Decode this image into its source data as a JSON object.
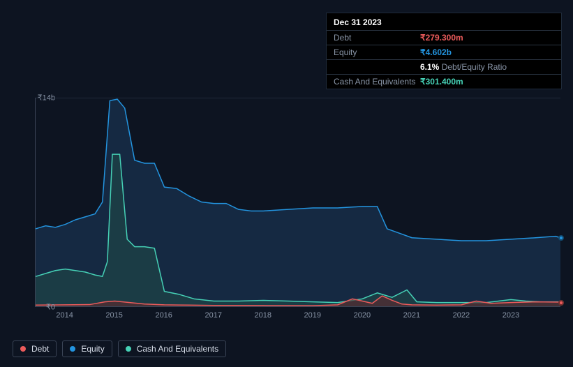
{
  "tooltip": {
    "date": "Dec 31 2023",
    "rows": [
      {
        "label": "Debt",
        "value": "₹279.300m",
        "cls": "v-debt"
      },
      {
        "label": "Equity",
        "value": "₹4.602b",
        "cls": "v-equity"
      },
      {
        "label": "",
        "value": "6.1%",
        "suffix": "Debt/Equity Ratio",
        "cls": "v-ratio"
      },
      {
        "label": "Cash And Equivalents",
        "value": "₹301.400m",
        "cls": "v-cash"
      }
    ]
  },
  "chart": {
    "type": "area",
    "background_color": "#0d1421",
    "grid_color": "#202a3a",
    "axis_color": "#3a4456",
    "tick_color": "#8a96a8",
    "tick_fontsize": 11,
    "y": {
      "min": 0,
      "max": 14,
      "ticks": [
        {
          "v": 0,
          "label": "₹0"
        },
        {
          "v": 14,
          "label": "₹14b"
        }
      ]
    },
    "x": {
      "min": 2013.4,
      "max": 2024.0,
      "ticks": [
        2014,
        2015,
        2016,
        2017,
        2018,
        2019,
        2020,
        2021,
        2022,
        2023
      ]
    },
    "series": [
      {
        "key": "equity",
        "label": "Equity",
        "color": "#2394df",
        "fill_color": "#1e3a5f",
        "fill_opacity": 0.55,
        "line_width": 1.5,
        "draw_order": 1,
        "points": [
          [
            2013.4,
            5.2
          ],
          [
            2013.6,
            5.4
          ],
          [
            2013.8,
            5.3
          ],
          [
            2014.0,
            5.5
          ],
          [
            2014.2,
            5.8
          ],
          [
            2014.4,
            6.0
          ],
          [
            2014.6,
            6.2
          ],
          [
            2014.75,
            7.0
          ],
          [
            2014.9,
            13.8
          ],
          [
            2015.05,
            13.9
          ],
          [
            2015.2,
            13.3
          ],
          [
            2015.4,
            9.8
          ],
          [
            2015.6,
            9.6
          ],
          [
            2015.8,
            9.6
          ],
          [
            2016.0,
            8.0
          ],
          [
            2016.25,
            7.9
          ],
          [
            2016.5,
            7.4
          ],
          [
            2016.75,
            7.0
          ],
          [
            2017.0,
            6.9
          ],
          [
            2017.25,
            6.9
          ],
          [
            2017.5,
            6.5
          ],
          [
            2017.75,
            6.4
          ],
          [
            2018.0,
            6.4
          ],
          [
            2018.5,
            6.5
          ],
          [
            2019.0,
            6.6
          ],
          [
            2019.5,
            6.6
          ],
          [
            2020.0,
            6.7
          ],
          [
            2020.3,
            6.7
          ],
          [
            2020.5,
            5.2
          ],
          [
            2020.75,
            4.9
          ],
          [
            2021.0,
            4.6
          ],
          [
            2021.5,
            4.5
          ],
          [
            2022.0,
            4.4
          ],
          [
            2022.5,
            4.4
          ],
          [
            2023.0,
            4.5
          ],
          [
            2023.5,
            4.6
          ],
          [
            2023.9,
            4.7
          ],
          [
            2024.0,
            4.6
          ]
        ]
      },
      {
        "key": "cash",
        "label": "Cash And Equivalents",
        "color": "#46d1b6",
        "fill_color": "#1f4a47",
        "fill_opacity": 0.6,
        "line_width": 1.5,
        "draw_order": 2,
        "points": [
          [
            2013.4,
            2.0
          ],
          [
            2013.6,
            2.2
          ],
          [
            2013.8,
            2.4
          ],
          [
            2014.0,
            2.5
          ],
          [
            2014.2,
            2.4
          ],
          [
            2014.4,
            2.3
          ],
          [
            2014.6,
            2.1
          ],
          [
            2014.75,
            2.0
          ],
          [
            2014.85,
            3.0
          ],
          [
            2014.95,
            10.2
          ],
          [
            2015.1,
            10.2
          ],
          [
            2015.25,
            4.5
          ],
          [
            2015.4,
            4.0
          ],
          [
            2015.6,
            4.0
          ],
          [
            2015.8,
            3.9
          ],
          [
            2016.0,
            1.0
          ],
          [
            2016.3,
            0.8
          ],
          [
            2016.6,
            0.5
          ],
          [
            2017.0,
            0.35
          ],
          [
            2017.5,
            0.35
          ],
          [
            2018.0,
            0.4
          ],
          [
            2018.5,
            0.35
          ],
          [
            2019.0,
            0.3
          ],
          [
            2019.5,
            0.25
          ],
          [
            2020.0,
            0.5
          ],
          [
            2020.3,
            0.9
          ],
          [
            2020.6,
            0.6
          ],
          [
            2020.9,
            1.1
          ],
          [
            2021.1,
            0.3
          ],
          [
            2021.5,
            0.25
          ],
          [
            2022.0,
            0.25
          ],
          [
            2022.5,
            0.25
          ],
          [
            2023.0,
            0.45
          ],
          [
            2023.3,
            0.35
          ],
          [
            2023.6,
            0.3
          ],
          [
            2024.0,
            0.3
          ]
        ]
      },
      {
        "key": "debt",
        "label": "Debt",
        "color": "#eb5b5b",
        "fill_color": "#5a2a2e",
        "fill_opacity": 0.65,
        "line_width": 1.5,
        "draw_order": 3,
        "points": [
          [
            2013.4,
            0.08
          ],
          [
            2014.0,
            0.1
          ],
          [
            2014.5,
            0.12
          ],
          [
            2014.8,
            0.3
          ],
          [
            2015.0,
            0.35
          ],
          [
            2015.3,
            0.25
          ],
          [
            2015.6,
            0.15
          ],
          [
            2016.0,
            0.1
          ],
          [
            2016.5,
            0.08
          ],
          [
            2017.0,
            0.06
          ],
          [
            2018.0,
            0.05
          ],
          [
            2019.0,
            0.04
          ],
          [
            2019.5,
            0.1
          ],
          [
            2019.8,
            0.5
          ],
          [
            2020.0,
            0.35
          ],
          [
            2020.2,
            0.2
          ],
          [
            2020.4,
            0.7
          ],
          [
            2020.6,
            0.4
          ],
          [
            2020.8,
            0.15
          ],
          [
            2021.0,
            0.1
          ],
          [
            2021.5,
            0.08
          ],
          [
            2022.0,
            0.1
          ],
          [
            2022.3,
            0.35
          ],
          [
            2022.6,
            0.2
          ],
          [
            2023.0,
            0.25
          ],
          [
            2023.5,
            0.3
          ],
          [
            2024.0,
            0.28
          ]
        ]
      }
    ],
    "legend_items": [
      {
        "label": "Debt",
        "color": "#eb5b5b"
      },
      {
        "label": "Equity",
        "color": "#2394df"
      },
      {
        "label": "Cash And Equivalents",
        "color": "#46d1b6"
      }
    ]
  }
}
